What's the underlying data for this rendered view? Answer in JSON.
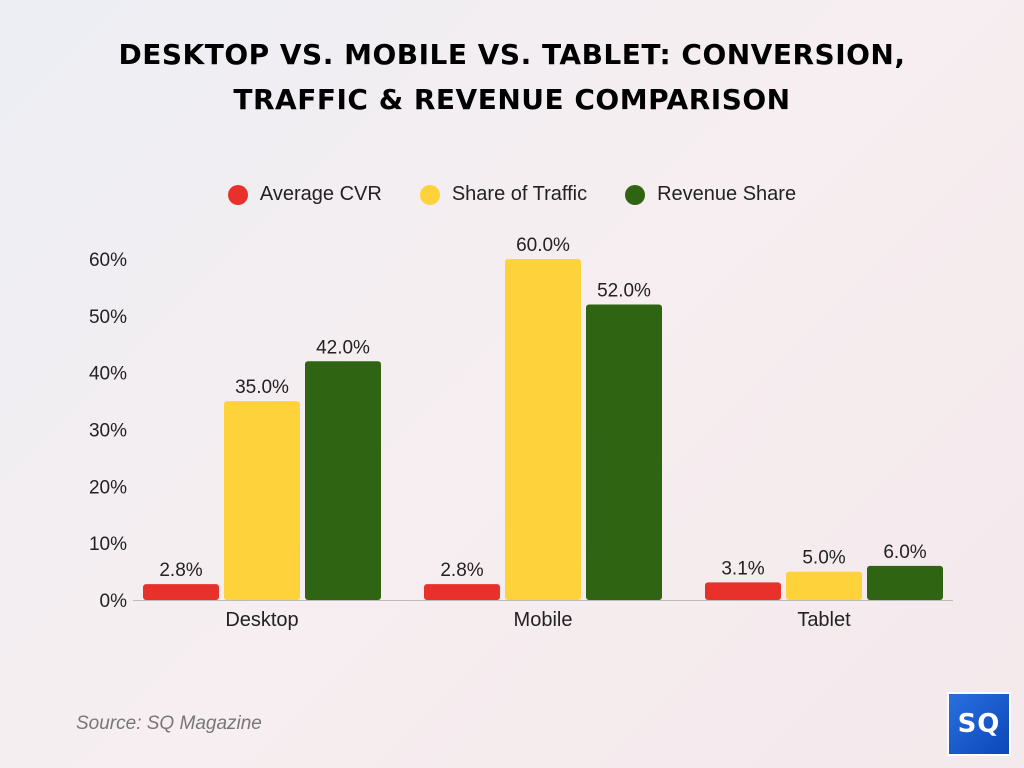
{
  "title_line1": "DESKTOP VS. MOBILE VS. TABLET: CONVERSION,",
  "title_line2": "TRAFFIC & REVENUE COMPARISON",
  "source": "Source: SQ Magazine",
  "logo_text": "SQ",
  "chart_data": {
    "type": "bar",
    "title": "DESKTOP VS. MOBILE VS. TABLET: CONVERSION, TRAFFIC & REVENUE COMPARISON",
    "categories": [
      "Desktop",
      "Mobile",
      "Tablet"
    ],
    "series": [
      {
        "name": "Average CVR",
        "color": "#e8312a",
        "values": [
          2.8,
          2.8,
          3.1
        ],
        "labels": [
          "2.8%",
          "2.8%",
          "3.1%"
        ]
      },
      {
        "name": "Share of Traffic",
        "color": "#fdd23a",
        "values": [
          35.0,
          60.0,
          5.0
        ],
        "labels": [
          "35.0%",
          "60.0%",
          "5.0%"
        ]
      },
      {
        "name": "Revenue Share",
        "color": "#2e6412",
        "values": [
          42.0,
          52.0,
          6.0
        ],
        "labels": [
          "42.0%",
          "52.0%",
          "6.0%"
        ]
      }
    ],
    "yticks": [
      "0%",
      "10%",
      "20%",
      "30%",
      "40%",
      "50%",
      "60%"
    ],
    "ylim": [
      0,
      60
    ],
    "grid": false,
    "legend": "top-center",
    "xlabel": "",
    "ylabel": ""
  }
}
